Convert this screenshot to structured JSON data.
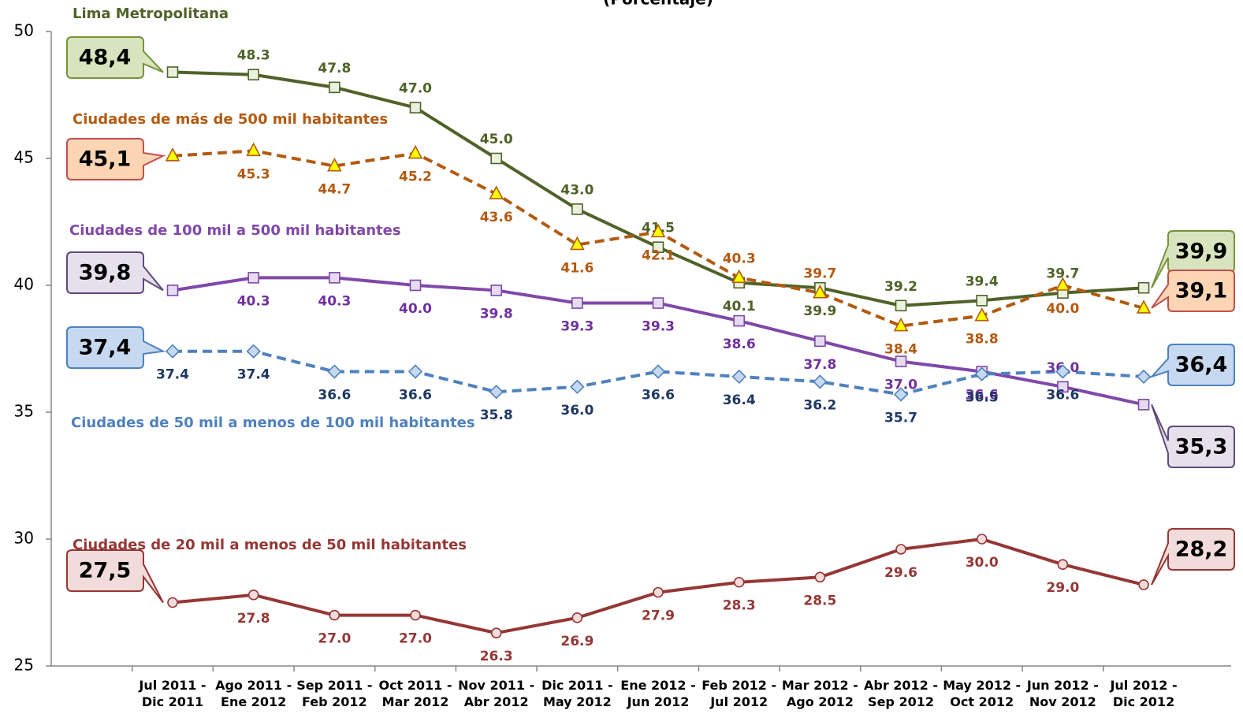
{
  "chart_data": {
    "type": "line",
    "title": "(Porcentaje)",
    "categories": [
      "Jul 2011 - Dic 2011",
      "Ago 2011 - Ene 2012",
      "Sep 2011 - Feb 2012",
      "Oct 2011 - Mar 2012",
      "Nov 2011 - Abr 2012",
      "Dic 2011 - May 2012",
      "Ene 2012 - Jun 2012",
      "Feb 2012 - Jul 2012",
      "Mar 2012 - Ago 2012",
      "Abr 2012 - Sep 2012",
      "May 2012 - Oct 2012",
      "Jun 2012 - Nov 2012",
      "Jul 2012 - Dic 2012"
    ],
    "ylim": [
      25,
      50
    ],
    "yticks": [
      25,
      30,
      35,
      40,
      45,
      50
    ],
    "series": [
      {
        "name": "Lima Metropolitana",
        "color": "#4f6228",
        "label_color": "#4f6228",
        "marker": "square",
        "marker_fill": "#ebf1de",
        "dashed": false,
        "callout_fill": "#d7e4bd",
        "callout_border": "#77933c",
        "values": [
          48.4,
          48.3,
          47.8,
          47.0,
          45.0,
          43.0,
          41.5,
          40.1,
          39.9,
          39.2,
          39.4,
          39.7,
          39.9
        ],
        "value_labels": [
          null,
          "48.3",
          "47.8",
          "47.0",
          "45.0",
          "43.0",
          "41.5",
          "40.1",
          "39.9",
          "39.2",
          "39.4",
          "39.7",
          null
        ],
        "callout_start": "48,4",
        "callout_end": "39,9"
      },
      {
        "name": "Ciudades de más de 500 mil habitantes",
        "color": "#b35a10",
        "label_color": "#b35a10",
        "marker": "triangle",
        "marker_fill": "#ffff00",
        "dashed": true,
        "callout_fill": "#fcd5b5",
        "callout_border": "#c0504d",
        "values": [
          45.1,
          45.3,
          44.7,
          45.2,
          43.6,
          41.6,
          42.1,
          40.3,
          39.7,
          38.4,
          38.8,
          40.0,
          39.1
        ],
        "value_labels": [
          null,
          "45.3",
          "44.7",
          "45.2",
          "43.6",
          "41.6",
          "42.1",
          "40.3",
          "39.7",
          "38.4",
          "38.8",
          "40.0",
          null
        ],
        "callout_start": "45,1",
        "callout_end": "39,1"
      },
      {
        "name": "Ciudades de 100 mil a 500 mil habitantes",
        "color": "#8048a8",
        "label_color": "#7030a0",
        "marker": "square",
        "marker_fill": "#e6dcf2",
        "dashed": false,
        "callout_fill": "#e6e0ec",
        "callout_border": "#604a7b",
        "values": [
          39.8,
          40.3,
          40.3,
          40.0,
          39.8,
          39.3,
          39.3,
          38.6,
          37.8,
          37.0,
          36.6,
          36.0,
          35.3
        ],
        "value_labels": [
          null,
          "40.3",
          "40.3",
          "40.0",
          "39.8",
          "39.3",
          "39.3",
          "38.6",
          "37.8",
          "37.0",
          "36.6",
          "36.0",
          null
        ],
        "callout_start": "39,8",
        "callout_end": "35,3"
      },
      {
        "name": "Ciudades de 50 mil a menos de 100 mil habitantes",
        "color": "#4f81bd",
        "label_color": "#1f3864",
        "marker": "diamond",
        "marker_fill": "#c6d9f1",
        "dashed": true,
        "callout_fill": "#c6d9f1",
        "callout_border": "#4f81bd",
        "values": [
          37.4,
          37.4,
          36.6,
          36.6,
          35.8,
          36.0,
          36.6,
          36.4,
          36.2,
          35.7,
          36.5,
          36.6,
          36.4
        ],
        "value_labels": [
          "37.4",
          "37.4",
          "36.6",
          "36.6",
          "35.8",
          "36.0",
          "36.6",
          "36.4",
          "36.2",
          "35.7",
          "36.5",
          "36.6",
          null
        ],
        "callout_start": "37,4",
        "callout_end": "36,4"
      },
      {
        "name": "Ciudades de 20 mil a menos de 50 mil habitantes",
        "color": "#953735",
        "label_color": "#953735",
        "marker": "circle",
        "marker_fill": "#f2dcdb",
        "dashed": false,
        "callout_fill": "#f2dcdb",
        "callout_border": "#953735",
        "values": [
          27.5,
          27.8,
          27.0,
          27.0,
          26.3,
          26.9,
          27.9,
          28.3,
          28.5,
          29.6,
          30.0,
          29.0,
          28.2
        ],
        "value_labels": [
          null,
          "27.8",
          "27.0",
          "27.0",
          "26.3",
          "26.9",
          "27.9",
          "28.3",
          "28.5",
          "29.6",
          "30.0",
          "29.0",
          null
        ],
        "callout_start": "27,5",
        "callout_end": "28,2"
      }
    ]
  }
}
